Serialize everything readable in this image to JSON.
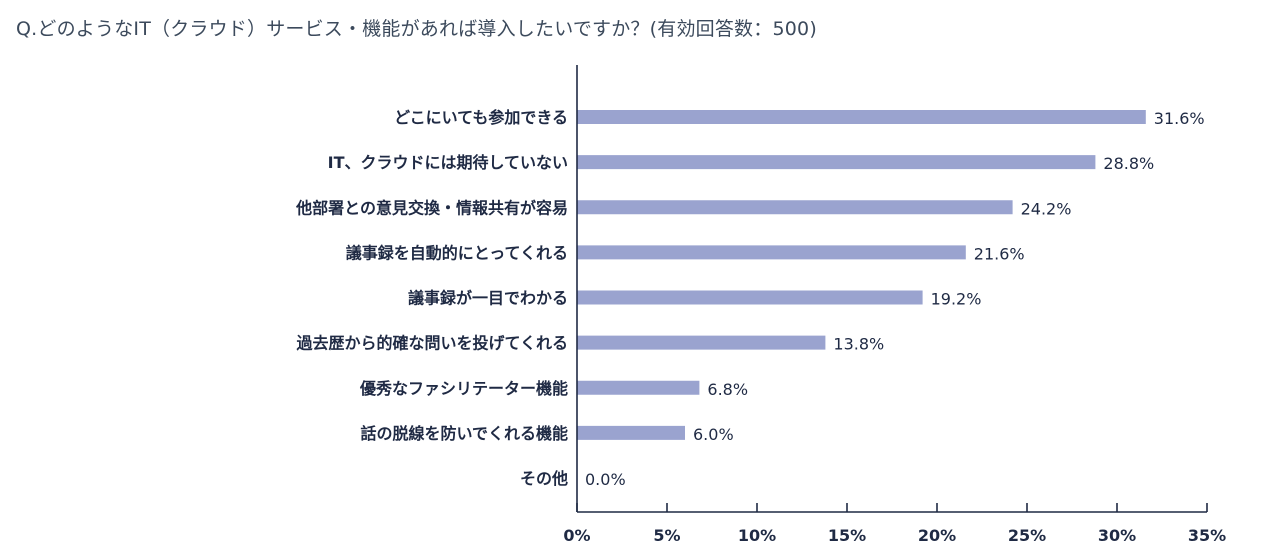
{
  "chart_data": {
    "type": "bar",
    "orientation": "horizontal",
    "title": "Q.どのようなIT（クラウド）サービス・機能があれば導入したいですか？(有効回答数：500)",
    "categories": [
      "どこにいても参加できる",
      "IT、クラウドには期待していない",
      "他部署との意見交換・情報共有が容易",
      "議事録を自動的にとってくれる",
      "議事録が一目でわかる",
      "過去歴から的確な問いを投げてくれる",
      "優秀なファシリテーター機能",
      "話の脱線を防いでくれる機能",
      "その他"
    ],
    "values": [
      31.6,
      28.8,
      24.2,
      21.6,
      19.2,
      13.8,
      6.8,
      6.0,
      0.0
    ],
    "value_labels": [
      "31.6%",
      "28.8%",
      "24.2%",
      "21.6%",
      "19.2%",
      "13.8%",
      "6.8%",
      "6.0%",
      "0.0%"
    ],
    "xlim": [
      0,
      35
    ],
    "x_ticks": [
      "0%",
      "5%",
      "10%",
      "15%",
      "20%",
      "25%",
      "30%",
      "35%"
    ],
    "bar_color": "#9aa3cf",
    "axis_color": "#1f2a44",
    "grid": false
  }
}
